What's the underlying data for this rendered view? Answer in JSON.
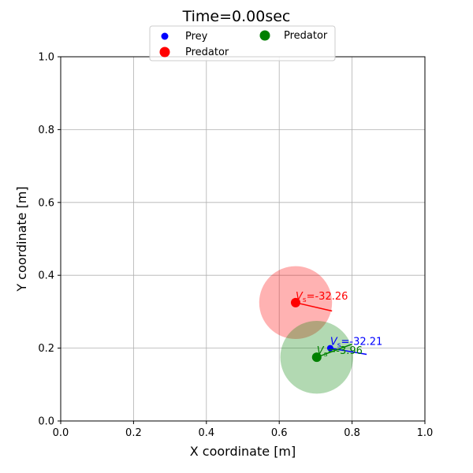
{
  "chart_data": {
    "type": "scatter",
    "title": "Time=0.00sec",
    "xlabel": "X coordinate [m]",
    "ylabel": "Y coordinate [m]",
    "xlim": [
      0,
      1
    ],
    "ylim": [
      0,
      1
    ],
    "xticks": [
      0,
      0.2,
      0.4,
      0.6,
      0.8,
      1
    ],
    "yticks": [
      0,
      0.2,
      0.4,
      0.6,
      0.8,
      1
    ],
    "xtick_labels": [
      "0.0",
      "0.2",
      "0.4",
      "0.6",
      "0.8",
      "1.0"
    ],
    "ytick_labels": [
      "0.0",
      "0.2",
      "0.4",
      "0.6",
      "0.8",
      "1.0"
    ],
    "grid": true,
    "legend": {
      "placement": "top-center",
      "entries": [
        {
          "label": "Prey",
          "color": "#0000ff"
        },
        {
          "label": "Predator",
          "color": "#ff0000"
        },
        {
          "label": "Predator",
          "color": "#008000"
        }
      ]
    },
    "agents": [
      {
        "name": "Prey",
        "x": 0.74,
        "y": 0.2,
        "color": "#0000ff",
        "heading_end": [
          0.84,
          0.183
        ],
        "velocity_label": "=-32.21",
        "has_circle": false
      },
      {
        "name": "Predator",
        "x": 0.645,
        "y": 0.325,
        "color": "#ff0000",
        "circle_radius": 0.1,
        "heading_end": [
          0.745,
          0.302
        ],
        "velocity_label": "=-32.26",
        "has_circle": true
      },
      {
        "name": "Predator",
        "x": 0.703,
        "y": 0.175,
        "color": "#008000",
        "circle_radius": 0.1,
        "heading_end": [
          0.8,
          0.211
        ],
        "velocity_label": "=-3.96",
        "has_circle": true
      }
    ]
  }
}
